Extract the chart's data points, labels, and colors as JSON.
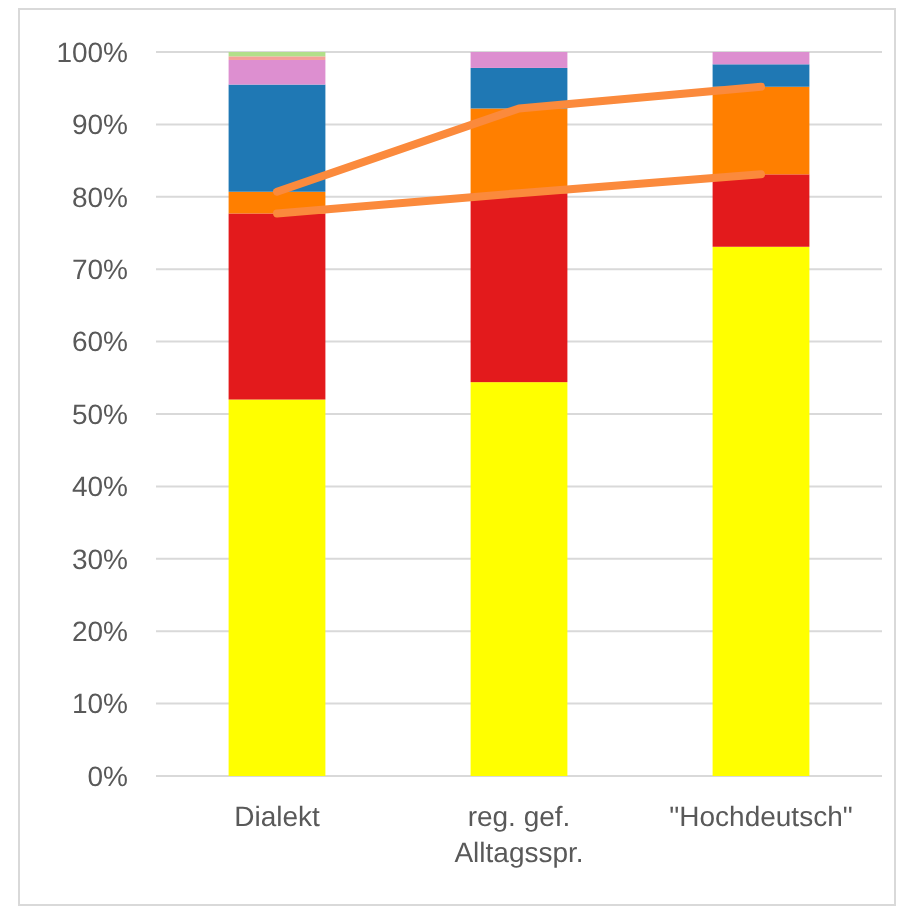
{
  "chart_data": {
    "type": "bar",
    "stacked": true,
    "categories": [
      "Dialekt",
      "reg. gef. Alltagsspr.",
      "\"Hochdeutsch\""
    ],
    "series": [
      {
        "color": "#ffff00",
        "values": [
          52,
          54.4,
          73.1
        ]
      },
      {
        "color": "#e31a1c",
        "values": [
          25.7,
          26.1,
          10
        ]
      },
      {
        "color": "#ff7f00",
        "values": [
          3,
          11.7,
          12.1
        ]
      },
      {
        "color": "#1f78b4",
        "values": [
          14.8,
          5.6,
          3.1
        ]
      },
      {
        "color": "#dd8fd0",
        "values": [
          3.4,
          2.2,
          1.7
        ]
      },
      {
        "color": "#f4a09a",
        "values": [
          0.5,
          0,
          0
        ]
      },
      {
        "color": "#b2df8a",
        "values": [
          0.6,
          0,
          0
        ]
      },
      {
        "type": "line",
        "color": "#fb8a3c",
        "values": [
          77.7,
          80.5,
          83.1
        ]
      },
      {
        "type": "line",
        "color": "#fb8a3c",
        "values": [
          80.7,
          92.2,
          95.2
        ]
      }
    ],
    "ylim": [
      0,
      100
    ],
    "yticks": [
      {
        "value": 0,
        "label": "0%"
      },
      {
        "value": 10,
        "label": "10%"
      },
      {
        "value": 20,
        "label": "20%"
      },
      {
        "value": 30,
        "label": "30%"
      },
      {
        "value": 40,
        "label": "40%"
      },
      {
        "value": 50,
        "label": "50%"
      },
      {
        "value": 60,
        "label": "60%"
      },
      {
        "value": 70,
        "label": "70%"
      },
      {
        "value": 80,
        "label": "80%"
      },
      {
        "value": 90,
        "label": "90%"
      },
      {
        "value": 100,
        "label": "100%"
      }
    ],
    "grid": "y"
  }
}
